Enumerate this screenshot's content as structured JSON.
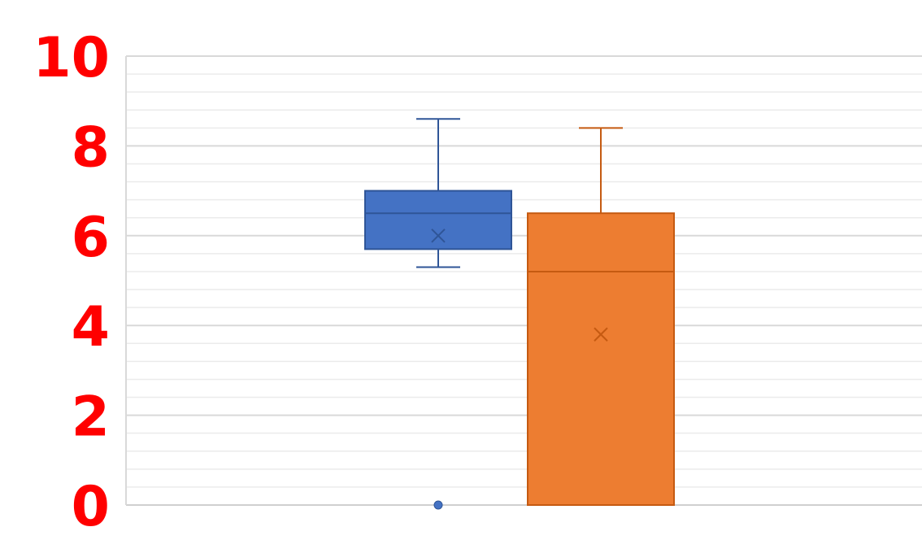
{
  "chart_data": {
    "type": "box",
    "title": "",
    "xlabel": "",
    "ylabel": "",
    "ylim": [
      0,
      10
    ],
    "yticks": [
      "0",
      "2",
      "4",
      "6",
      "8",
      "10"
    ],
    "grid": {
      "major": true,
      "minor": true
    },
    "series": [
      {
        "color": "#4472C4",
        "whisker_low": 5.3,
        "q1": 5.7,
        "median": 6.5,
        "q3": 7.0,
        "whisker_high": 8.6,
        "mean": 6.0,
        "outliers": [
          0
        ]
      },
      {
        "color": "#ED7D31",
        "whisker_low": 0,
        "q1": 0,
        "median": 5.2,
        "q3": 6.5,
        "whisker_high": 8.4,
        "mean": 3.8,
        "outliers": []
      }
    ],
    "colors": {
      "tick_label": "#FF0000",
      "grid_major": "#D9D9D9",
      "grid_minor": "#EBEBEB"
    }
  }
}
